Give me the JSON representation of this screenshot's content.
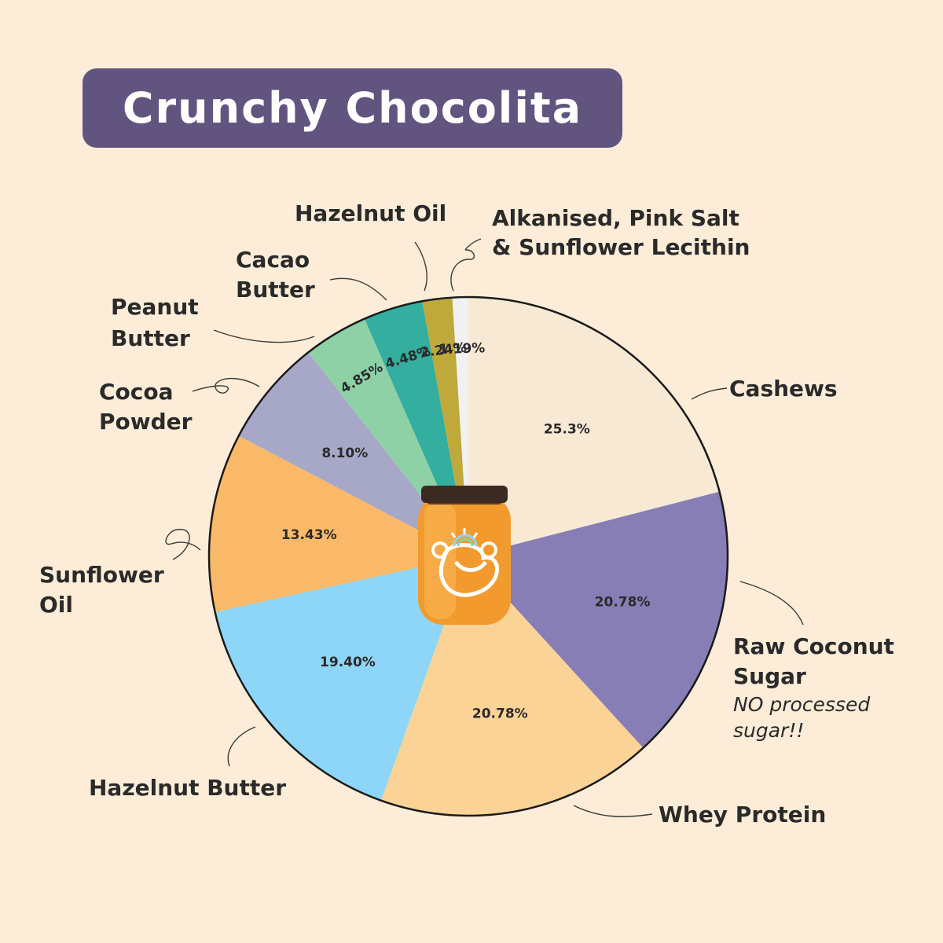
{
  "title": "Crunchy Chocolita",
  "chart_data": {
    "type": "pie",
    "title": "Crunchy Chocolita",
    "start": "top",
    "direction": "clockwise",
    "slices": [
      {
        "name": "Cashews",
        "value": 25.3,
        "label": "25.3%",
        "color": "#f8e9d4"
      },
      {
        "name": "Raw Coconut Sugar",
        "value": 20.78,
        "label": "20.78%",
        "color": "#877eb5",
        "note": "NO processed sugar!!"
      },
      {
        "name": "Whey Protein",
        "value": 20.78,
        "label": "20.78%",
        "color": "#fbd396"
      },
      {
        "name": "Hazelnut Butter",
        "value": 19.4,
        "label": "19.40%",
        "color": "#8ed6f7"
      },
      {
        "name": "Sunflower Oil",
        "value": 13.43,
        "label": "13.43%",
        "color": "#f9b968"
      },
      {
        "name": "Cocoa Powder",
        "value": 8.1,
        "label": "8.10%",
        "color": "#a7a8c8"
      },
      {
        "name": "Peanut Butter",
        "value": 4.85,
        "label": "4.85%",
        "color": "#8ed1a6"
      },
      {
        "name": "Cacao Butter",
        "value": 4.48,
        "label": "4.48%",
        "color": "#33ae9f"
      },
      {
        "name": "Hazelnut Oil",
        "value": 2.24,
        "label": "2.24%",
        "color": "#bfa93a"
      },
      {
        "name": "Alkanised, Pink Salt & Sunflower Lecithin",
        "value": 1.19,
        "label": "1.19%",
        "color": "#f1f1f3"
      }
    ]
  },
  "jar_icon": "nut-butter-jar-logo"
}
